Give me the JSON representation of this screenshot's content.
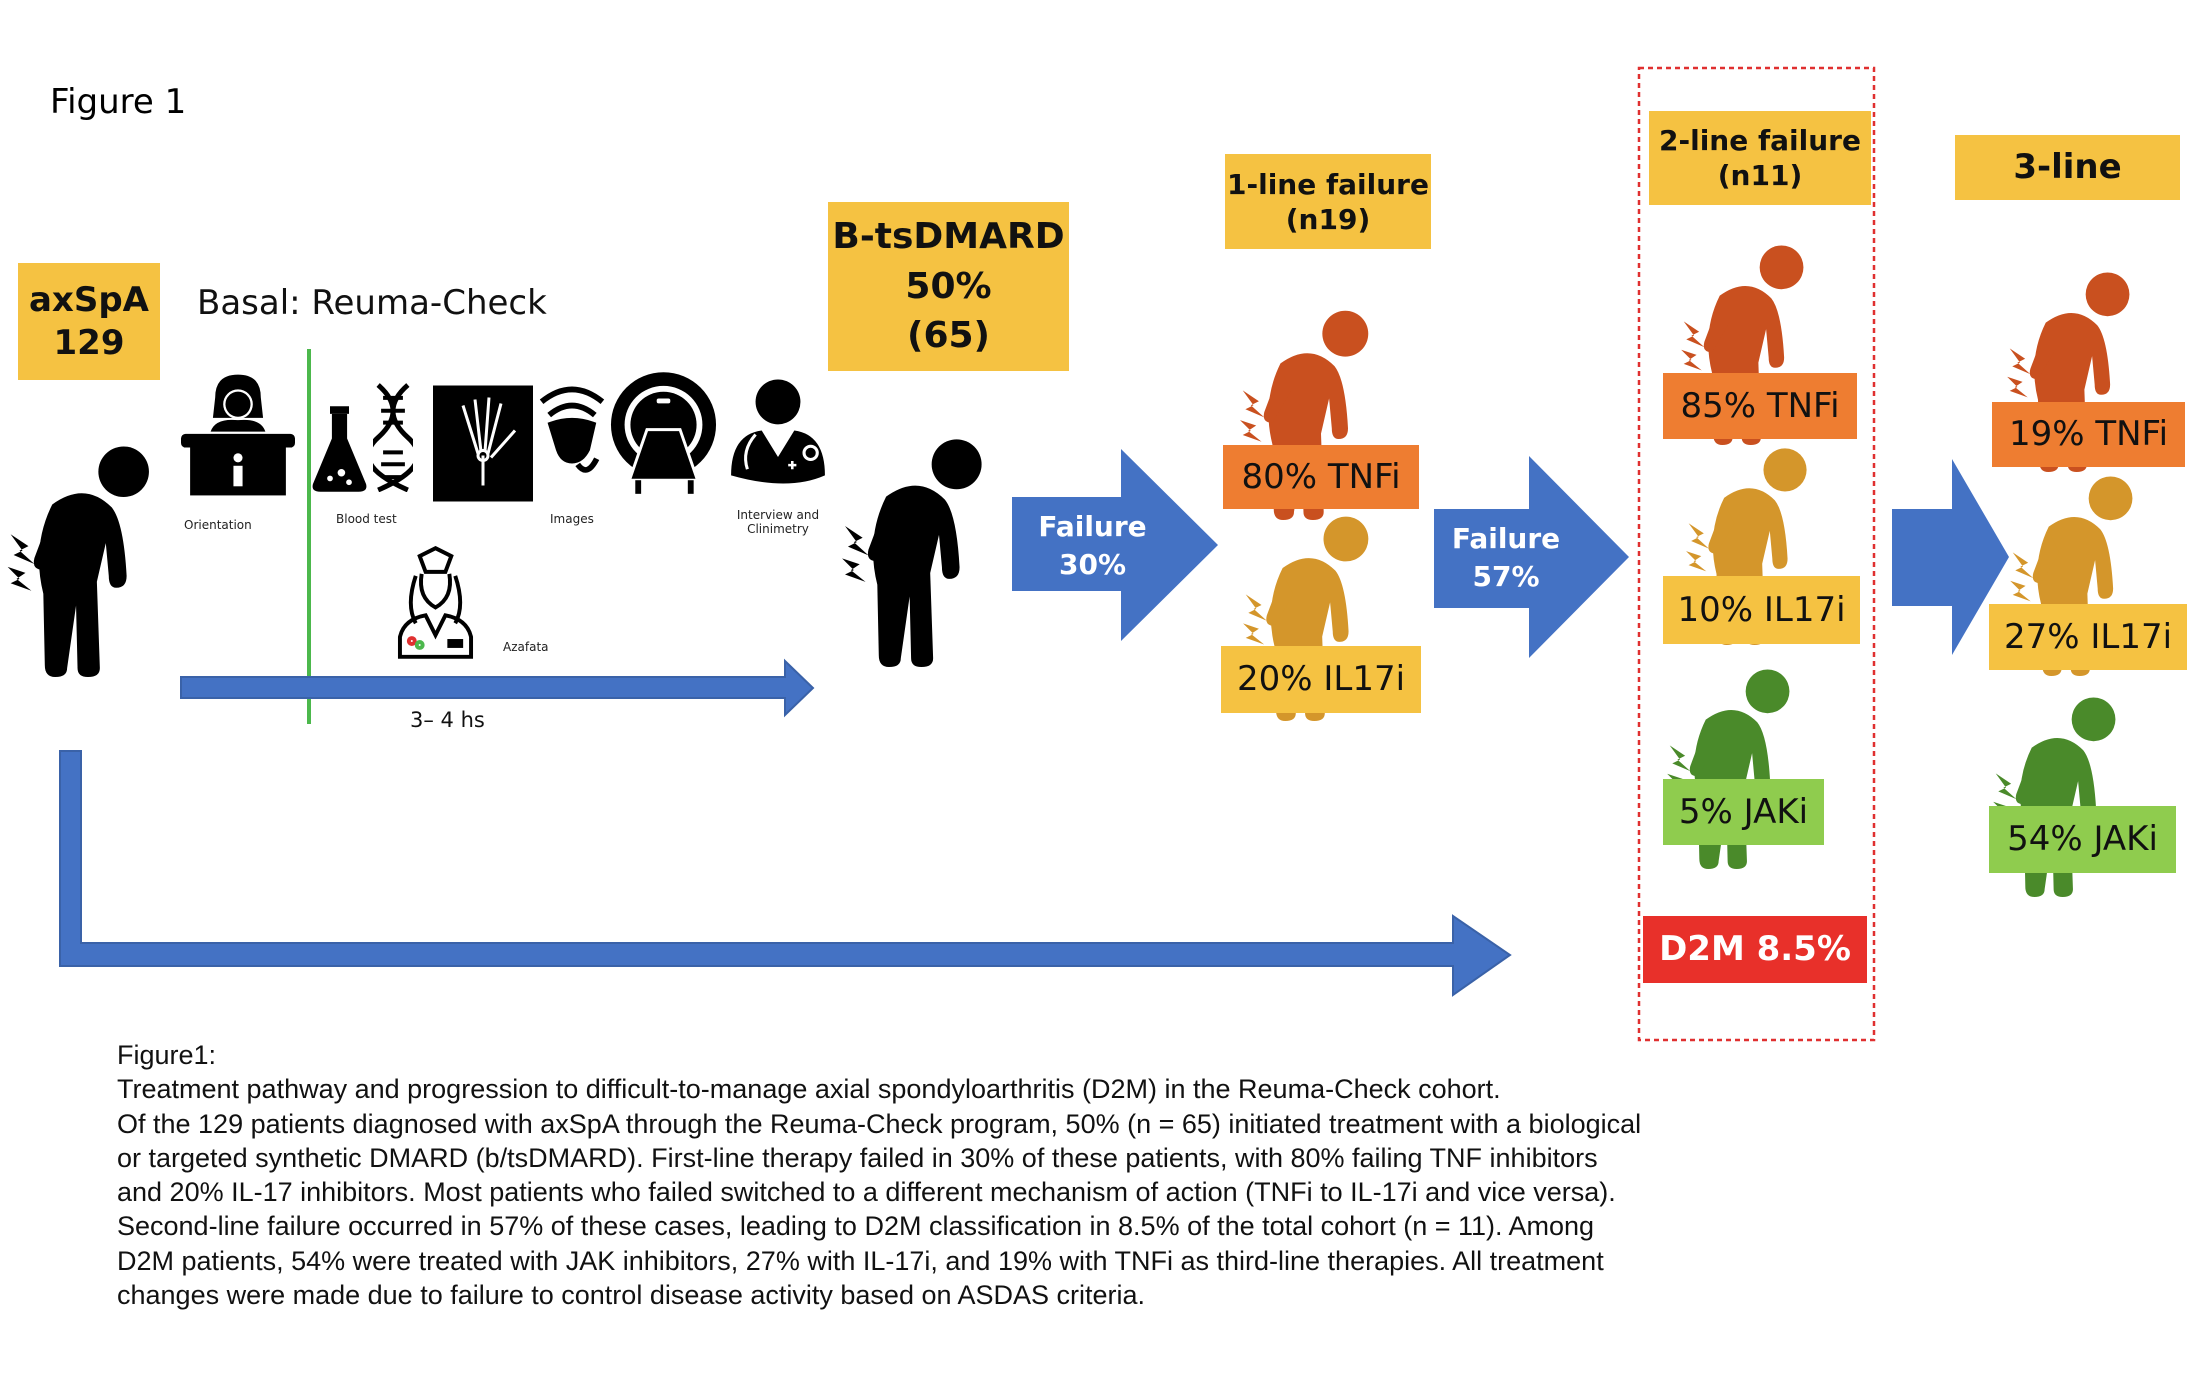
{
  "figure_label": "Figure 1",
  "colors": {
    "yellow": "#F5C242",
    "orange": "#EE7D31",
    "gold_person": "#D4962B",
    "orange_person": "#C9501F",
    "green": "#8FCC4E",
    "green_person": "#4A8A2A",
    "red": "#E8302A",
    "blue": "#4472C4",
    "green_line": "#4CB84C",
    "dash": "#E03030"
  },
  "start": {
    "line1": "axSpA",
    "line2": "129"
  },
  "basal": {
    "title": "Basal: Reuma-Check",
    "icons": [
      "receptionist-icon",
      "flask-icon",
      "dna-icon",
      "xray-hand-icon",
      "ultrasound-icon",
      "mri-icon",
      "doctor-icon",
      "nurse-icon"
    ],
    "labels": {
      "orientation": "Orientation",
      "blood": "Blood test",
      "images": "Images",
      "interview1": "Interview and",
      "interview2": "Clinimetry",
      "azafata": "Azafata"
    },
    "duration": "3– 4 hs"
  },
  "btsdmard": {
    "line1": "B-tsDMARD",
    "line2": "50%",
    "line3": "(65)"
  },
  "arrow1": {
    "line1": "Failure",
    "line2": "30%"
  },
  "line1": {
    "title1": "1-line failure",
    "title2": "(n19)",
    "tnfi": "80% TNFi",
    "il17i": "20% IL17i"
  },
  "arrow2": {
    "line1": "Failure",
    "line2": "57%"
  },
  "line2": {
    "title1": "2-line failure",
    "title2": "(n11)",
    "tnfi": "85% TNFi",
    "il17i": "10% IL17i",
    "jaki": "5% JAKi",
    "d2m": "D2M 8.5%"
  },
  "line3": {
    "title": "3-line",
    "tnfi": "19% TNFi",
    "il17i": "27% IL17i",
    "jaki": "54% JAKi"
  },
  "caption": {
    "heading": "Figure1:",
    "lines": [
      "Treatment pathway and progression to difficult-to-manage axial spondyloarthritis (D2M) in the Reuma-Check cohort.",
      "Of the 129 patients diagnosed with axSpA through the Reuma-Check program, 50% (n = 65) initiated treatment with a biological",
      "or targeted synthetic DMARD (b/tsDMARD). First-line therapy failed in 30% of these patients, with 80% failing TNF inhibitors",
      "and 20% IL-17 inhibitors. Most patients who failed switched to a different mechanism of action (TNFi to IL-17i and vice versa).",
      "Second-line failure occurred in 57% of these cases, leading to D2M classification in 8.5% of the total cohort (n = 11). Among",
      "D2M patients, 54% were treated with JAK inhibitors, 27% with IL-17i, and 19% with TNFi as third-line therapies. All treatment",
      "changes were made due to failure to control disease activity based on ASDAS criteria."
    ]
  }
}
